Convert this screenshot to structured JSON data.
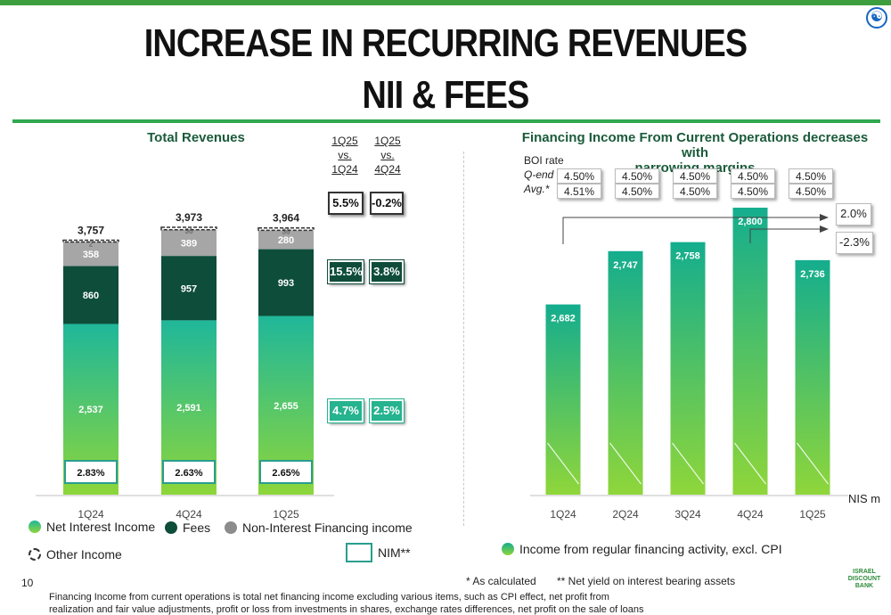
{
  "page": {
    "title_line1": "INCREASE IN RECURRING REVENUES",
    "title_line2": "NII & FEES",
    "page_number": "10",
    "footnote_calculated": "* As calculated",
    "footnote_nim": "** Net yield on interest bearing assets",
    "footer_text_line1": "Financing Income from current operations is total net financing income excluding various items, such as CPI effect, net profit from",
    "footer_text_line2": "realization and fair value adjustments, profit or loss from investments in shares, exchange rates differences, net profit on the sale of loans",
    "logo_text": "ISRAEL DISCOUNT BANK",
    "accessibility_icon": "accessibility-icon"
  },
  "left_panel": {
    "title": "Total Revenues",
    "compare_headers": [
      {
        "l1": "1Q25",
        "l2": "vs.",
        "l3": "1Q24"
      },
      {
        "l1": "1Q25",
        "l2": "vs.",
        "l3": "4Q24"
      }
    ],
    "compare_boxes": {
      "total": [
        "5.5%",
        "-0.2%"
      ],
      "fees": [
        "15.5%",
        "3.8%"
      ],
      "nii": [
        "4.7%",
        "2.5%"
      ]
    },
    "legend": {
      "nii": "Net Interest Income",
      "fees": "Fees",
      "non_interest": "Non-Interest Financing income",
      "other": "Other Income",
      "nim": "NIM**"
    }
  },
  "right_panel": {
    "title_line1": "Financing Income From Current Operations decreases with",
    "title_line2": "narrowing margins",
    "boi_label_line1": "BOI rate",
    "boi_label_line2": "Q-end",
    "boi_label_line3": "Avg.*",
    "boi_rates": [
      {
        "qend": "4.50%",
        "avg": "4.51%"
      },
      {
        "qend": "4.50%",
        "avg": "4.50%"
      },
      {
        "qend": "4.50%",
        "avg": "4.50%"
      },
      {
        "qend": "4.50%",
        "avg": "4.50%"
      },
      {
        "qend": "4.50%",
        "avg": "4.50%"
      }
    ],
    "change_long": "2.0%",
    "change_short": "-2.3%",
    "unit": "NIS m",
    "legend": "Income from regular financing activity, excl. CPI"
  },
  "chart_data": [
    {
      "type": "bar",
      "stacked": true,
      "categories": [
        "1Q24",
        "4Q24",
        "1Q25"
      ],
      "series": [
        {
          "name": "Net Interest Income",
          "values": [
            2537,
            2591,
            2655
          ],
          "color": "#2dbf8c"
        },
        {
          "name": "Fees",
          "values": [
            860,
            957,
            993
          ],
          "color": "#0d4d3a"
        },
        {
          "name": "Non-Interest Financing income",
          "values": [
            358,
            389,
            280
          ],
          "color": "#a6a6a6"
        },
        {
          "name": "Other Income",
          "values": [
            2,
            36,
            36
          ]
        }
      ],
      "totals": [
        "3,757",
        "3,973",
        "3,964"
      ],
      "value_labels": {
        "nii": [
          "2,537",
          "2,591",
          "2,655"
        ],
        "fees": [
          "860",
          "957",
          "993"
        ],
        "non_interest": [
          "358",
          "389",
          "280"
        ],
        "other": [
          "2",
          "36",
          "36"
        ]
      },
      "nim": [
        "2.83%",
        "2.63%",
        "2.65%"
      ]
    },
    {
      "type": "bar",
      "categories": [
        "1Q24",
        "2Q24",
        "3Q24",
        "4Q24",
        "1Q25"
      ],
      "series": [
        {
          "name": "Income from regular financing activity, excl. CPI",
          "values": [
            2682,
            2747,
            2758,
            2800,
            2736
          ]
        }
      ],
      "value_labels": [
        "2,682",
        "2,747",
        "2,758",
        "2,800",
        "2,736"
      ]
    }
  ]
}
